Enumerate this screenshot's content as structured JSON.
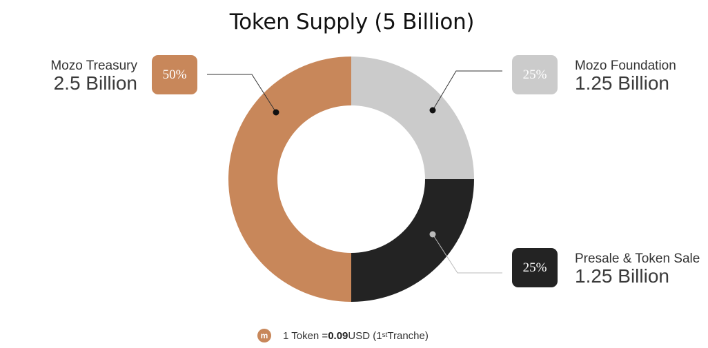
{
  "title": "Token Supply (5 Billion)",
  "chart_data": {
    "type": "pie",
    "donut": true,
    "title": "Token Supply (5 Billion)",
    "slices": [
      {
        "name": "Mozo Foundation",
        "value": 1.25,
        "value_label": "1.25 Billion",
        "percent_label": "25%",
        "color": "#cbcbcb",
        "badge_text_color": "#ffffff"
      },
      {
        "name": "Presale & Token Sale",
        "value": 1.25,
        "value_label": "1.25 Billion",
        "percent_label": "25%",
        "color": "#232323",
        "badge_text_color": "#ffffff"
      },
      {
        "name": "Mozo Treasury",
        "value": 2.5,
        "value_label": "2.5 Billion",
        "percent_label": "50%",
        "color": "#c8875a",
        "badge_text_color": "#ffffff"
      }
    ]
  },
  "footer": {
    "logo_icon": "mozo-logo-icon",
    "logo_glyph": "m",
    "prefix": "1 Token = ",
    "price": "0.09",
    "unit": " USD (1",
    "superscript": "st",
    "suffix": " Tranche)"
  }
}
